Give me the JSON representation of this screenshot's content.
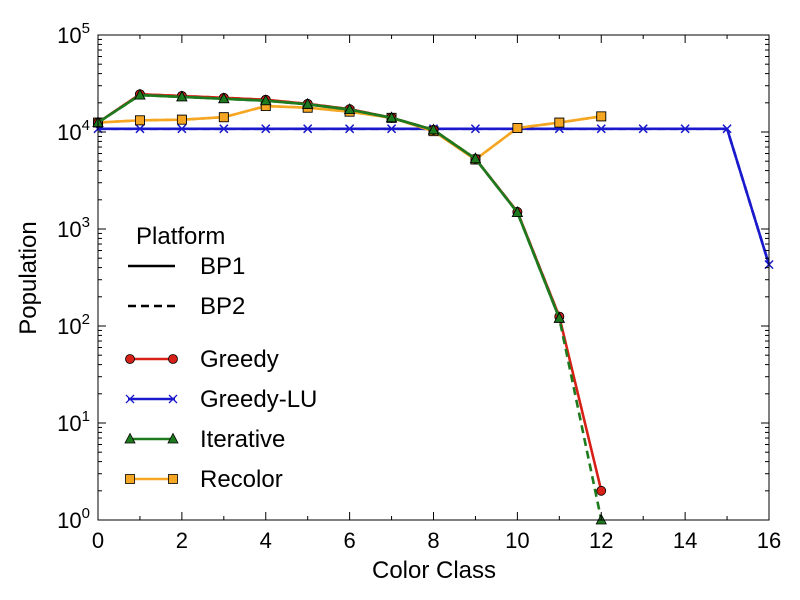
{
  "chart_data": {
    "type": "line",
    "xlabel": "Color Class",
    "ylabel": "Population",
    "xlim": [
      0,
      16
    ],
    "ylim": [
      1,
      100000
    ],
    "yscale": "log",
    "grid": false,
    "x_ticks": [
      "0",
      "2",
      "4",
      "6",
      "8",
      "10",
      "12",
      "14",
      "16"
    ],
    "y_ticks": [
      {
        "base": "10",
        "exp": "0"
      },
      {
        "base": "10",
        "exp": "1"
      },
      {
        "base": "10",
        "exp": "2"
      },
      {
        "base": "10",
        "exp": "3"
      },
      {
        "base": "10",
        "exp": "4"
      },
      {
        "base": "10",
        "exp": "5"
      }
    ],
    "legend": {
      "placement": "center-left",
      "title": "Platform",
      "platforms": [
        {
          "name": "BP1",
          "linestyle": "solid"
        },
        {
          "name": "BP2",
          "linestyle": "dashed"
        }
      ]
    },
    "series": [
      {
        "name": "Greedy",
        "color": "#d62018",
        "marker": "circle",
        "runs": [
          {
            "platform": "BP1",
            "x": [
              0,
              1,
              2,
              3,
              4,
              5,
              6,
              7,
              8,
              9,
              10,
              11,
              12
            ],
            "values": [
              12500,
              24500,
              23500,
              22500,
              21500,
              19500,
              17200,
              14000,
              10500,
              5300,
              1500,
              125,
              2
            ]
          },
          {
            "platform": "BP2",
            "x": [
              0,
              1,
              2,
              3,
              4,
              5,
              6,
              7,
              8,
              9,
              10,
              11
            ],
            "values": [
              12500,
              24500,
              23500,
              22500,
              21500,
              19500,
              17200,
              14000,
              10500,
              5300,
              1500,
              125
            ]
          }
        ]
      },
      {
        "name": "Greedy-LU",
        "color": "#1a1acc",
        "marker": "x",
        "runs": [
          {
            "platform": "BP1",
            "x": [
              0,
              1,
              2,
              3,
              4,
              5,
              6,
              7,
              8,
              9,
              10,
              11,
              12,
              13,
              14,
              15,
              16
            ],
            "values": [
              10800,
              10800,
              10800,
              10800,
              10800,
              10800,
              10800,
              10800,
              10800,
              10800,
              10800,
              10800,
              10800,
              10800,
              10800,
              10800,
              430
            ]
          },
          {
            "platform": "BP2",
            "x": [
              0,
              1,
              2,
              3,
              4,
              5,
              6,
              7,
              8,
              9,
              10,
              11,
              12,
              13,
              14,
              15,
              16
            ],
            "values": [
              10800,
              10800,
              10800,
              10800,
              10800,
              10800,
              10800,
              10800,
              10800,
              10800,
              10800,
              10800,
              10800,
              10800,
              10800,
              10800,
              430
            ]
          }
        ]
      },
      {
        "name": "Iterative",
        "color": "#1e7a1e",
        "marker": "triangle",
        "runs": [
          {
            "platform": "BP1",
            "x": [
              0,
              1,
              2,
              3,
              4,
              5,
              6,
              7,
              8,
              9,
              10,
              11
            ],
            "values": [
              12500,
              24000,
              23000,
              22000,
              21000,
              19300,
              17000,
              14000,
              10500,
              5300,
              1480,
              120
            ]
          },
          {
            "platform": "BP2",
            "x": [
              0,
              1,
              2,
              3,
              4,
              5,
              6,
              7,
              8,
              9,
              10,
              11,
              12
            ],
            "values": [
              12500,
              24000,
              23000,
              22000,
              21000,
              19300,
              17000,
              14000,
              10500,
              5300,
              1480,
              120,
              1
            ]
          }
        ]
      },
      {
        "name": "Recolor",
        "color": "#f5a623",
        "marker": "square",
        "runs": [
          {
            "platform": "BP1",
            "x": [
              0,
              1,
              2,
              3,
              4,
              5,
              6,
              7,
              8,
              9,
              10,
              11,
              12
            ],
            "values": [
              12500,
              13200,
              13400,
              14200,
              18500,
              17800,
              16200,
              14000,
              10200,
              5200,
              11000,
              12500,
              14500
            ]
          },
          {
            "platform": "BP2",
            "x": [
              0,
              1,
              2,
              3,
              4,
              5,
              6,
              7,
              8,
              9,
              10,
              11,
              12
            ],
            "values": [
              12500,
              13200,
              13400,
              14200,
              18500,
              17800,
              16200,
              14000,
              10200,
              5200,
              11000,
              12500,
              14500
            ]
          }
        ]
      }
    ]
  }
}
